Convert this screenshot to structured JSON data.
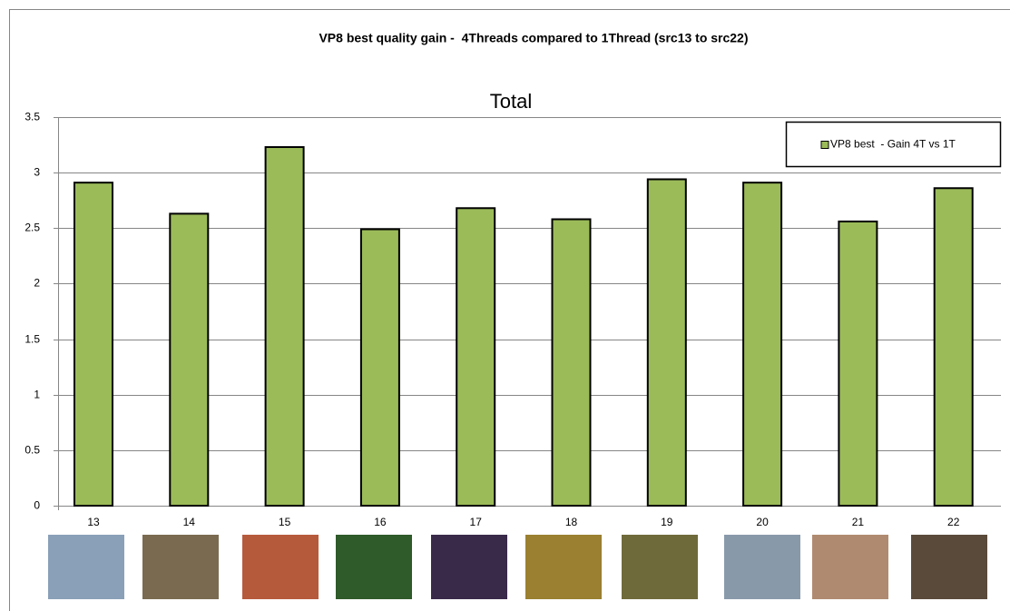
{
  "chart_data": {
    "type": "bar",
    "title": "VP8 best quality gain -  4Threads compared to 1Thread (src13 to src22)",
    "subtitle": "Total",
    "categories": [
      "13",
      "14",
      "15",
      "16",
      "17",
      "18",
      "19",
      "20",
      "21",
      "22"
    ],
    "series": [
      {
        "name": "VP8 best  - Gain 4T vs 1T",
        "color": "#9bbb59",
        "values": [
          2.91,
          2.63,
          3.23,
          2.49,
          2.68,
          2.58,
          2.94,
          2.91,
          2.56,
          2.86
        ]
      }
    ],
    "ylim": [
      0,
      3.5
    ],
    "yticks": [
      0,
      0.5,
      1,
      1.5,
      2,
      2.5,
      3,
      3.5
    ],
    "grid": true,
    "legend": "top-right"
  }
}
